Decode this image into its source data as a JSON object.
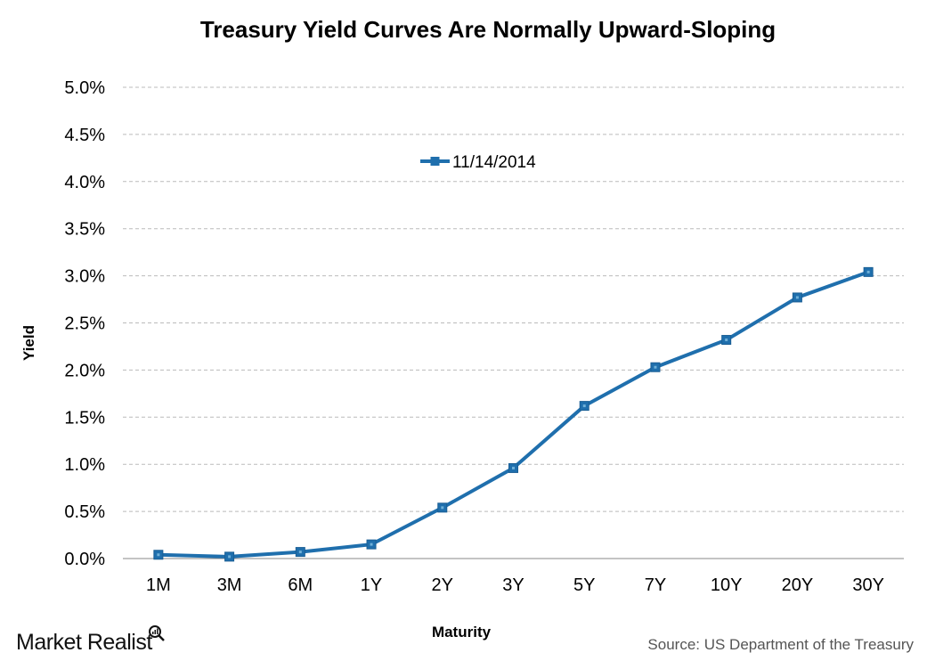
{
  "chart_data": {
    "type": "line",
    "title": "Treasury Yield Curves Are Normally Upward-Sloping",
    "xlabel": "Maturity",
    "ylabel": "Yield",
    "categories": [
      "1M",
      "3M",
      "6M",
      "1Y",
      "2Y",
      "3Y",
      "5Y",
      "7Y",
      "10Y",
      "20Y",
      "30Y"
    ],
    "series": [
      {
        "name": "11/14/2014",
        "values": [
          0.04,
          0.02,
          0.07,
          0.15,
          0.54,
          0.96,
          1.62,
          2.03,
          2.32,
          2.77,
          3.04
        ],
        "color": "#1f6fad"
      }
    ],
    "ylim": [
      0,
      5.0
    ],
    "yticks": [
      "0.0%",
      "0.5%",
      "1.0%",
      "1.5%",
      "2.0%",
      "2.5%",
      "3.0%",
      "3.5%",
      "4.0%",
      "4.5%",
      "5.0%"
    ],
    "grid": "horizontal dashed",
    "legend": "top-center",
    "marker": "square"
  },
  "footer": {
    "logo": "Market Realist",
    "source": "Source: US Department of the Treasury"
  }
}
